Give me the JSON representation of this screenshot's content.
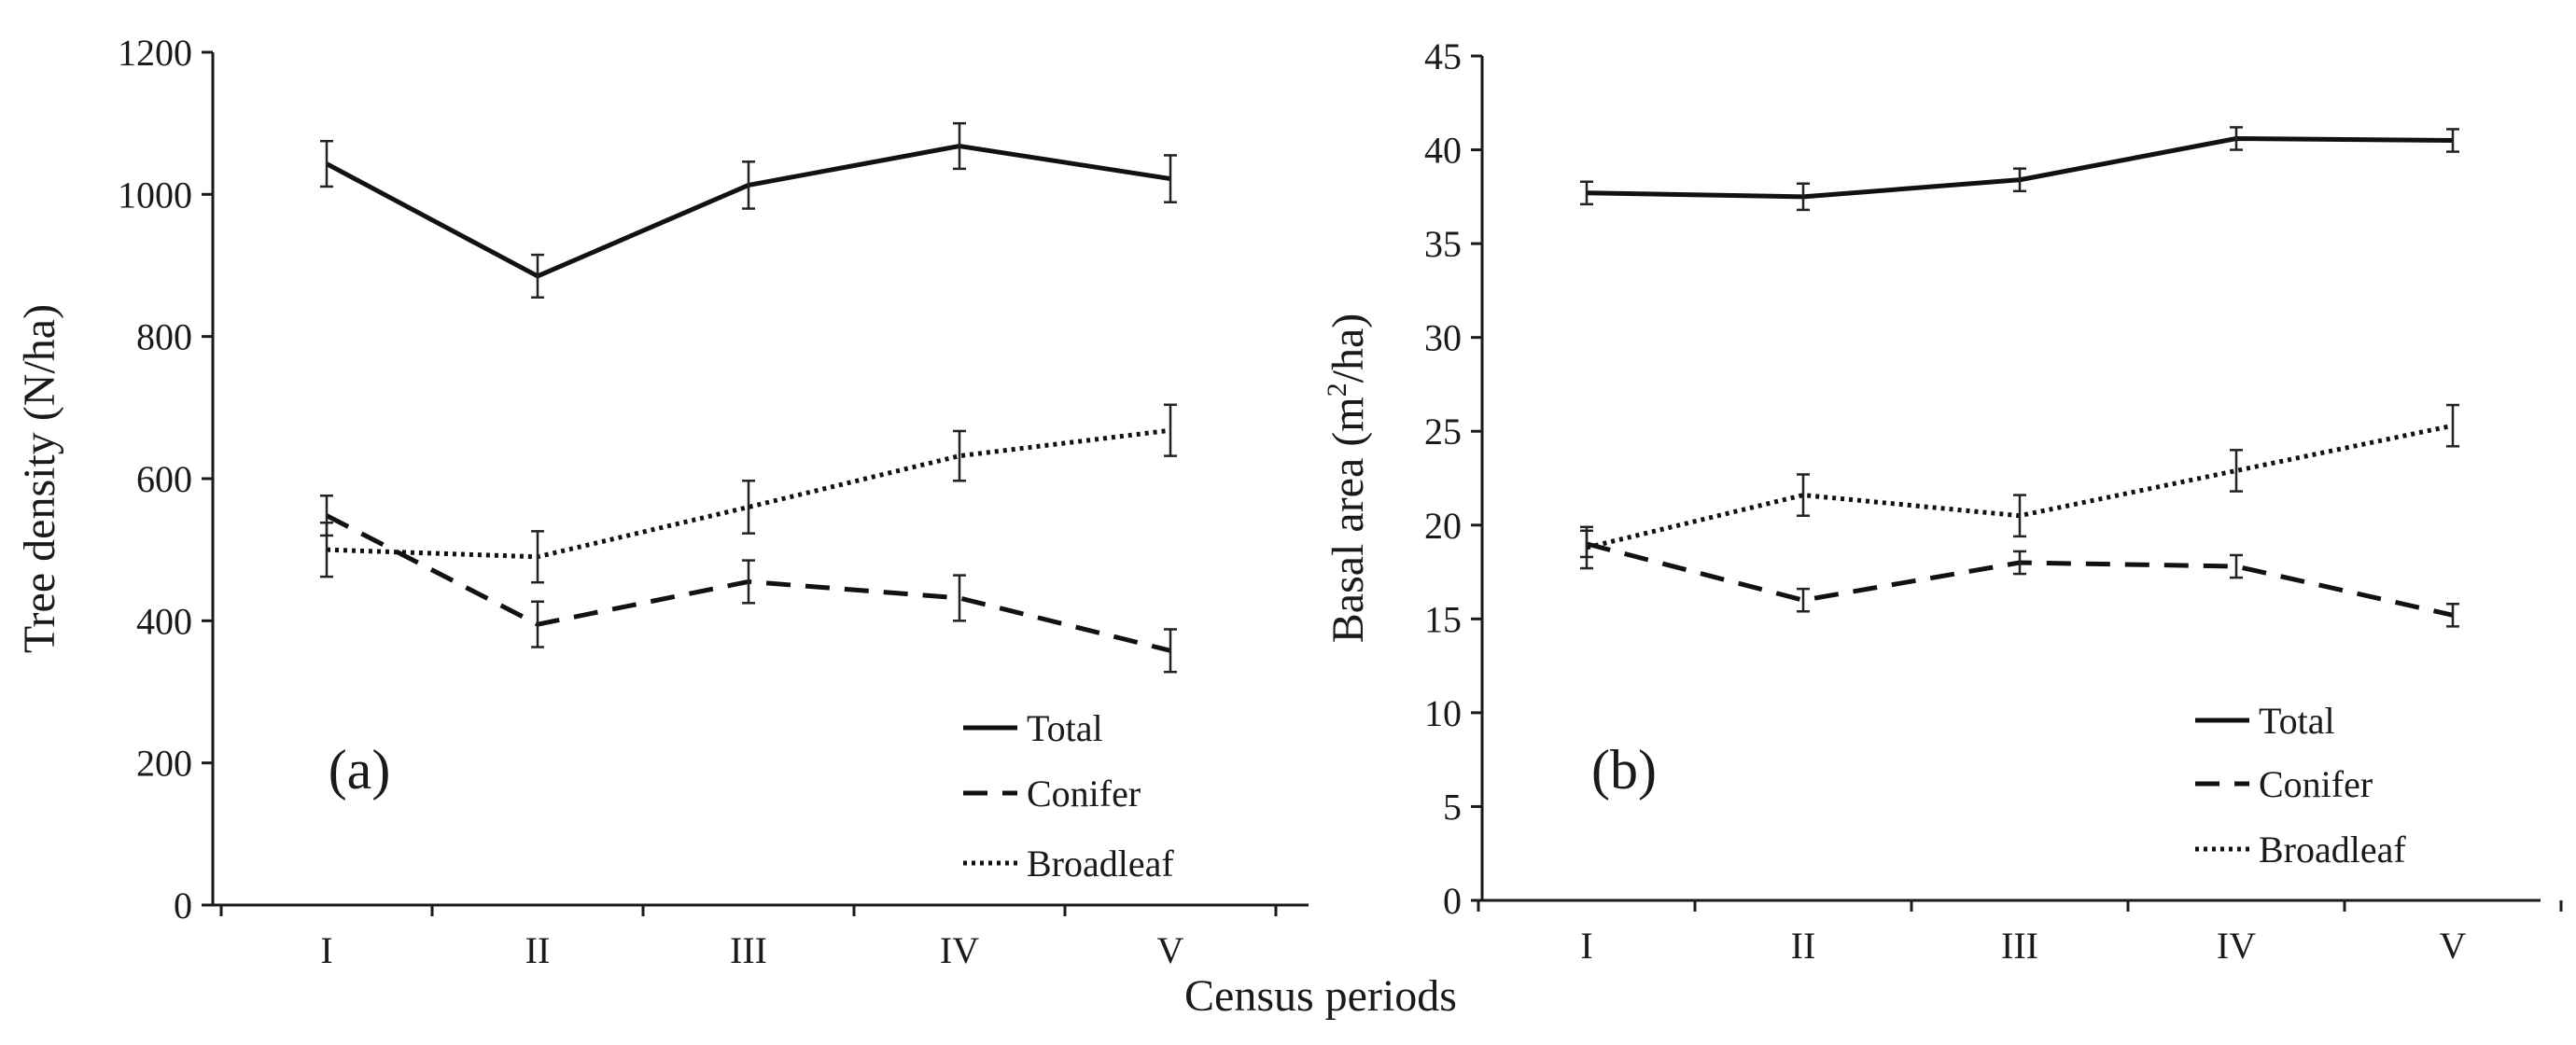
{
  "figure": {
    "xlabel": "Census periods"
  },
  "chart_data": [
    {
      "type": "line",
      "panel_label": "(a)",
      "title": "",
      "xlabel": "Census periods",
      "ylabel": "Tree density (N/ha)",
      "categories": [
        "I",
        "II",
        "III",
        "IV",
        "V"
      ],
      "ylim": [
        0,
        1200
      ],
      "yticks": [
        0,
        200,
        400,
        600,
        800,
        1000,
        1200
      ],
      "legend_position": "bottom-right",
      "series": [
        {
          "name": "Total",
          "style": "solid",
          "values": [
            1043,
            885,
            1013,
            1068,
            1022
          ],
          "errors": [
            32,
            30,
            33,
            32,
            33
          ]
        },
        {
          "name": "Conifer",
          "style": "dashed",
          "values": [
            548,
            395,
            455,
            432,
            358
          ],
          "errors": [
            28,
            32,
            30,
            32,
            30
          ]
        },
        {
          "name": "Broadleaf",
          "style": "dotted",
          "values": [
            500,
            490,
            560,
            632,
            668
          ],
          "errors": [
            38,
            36,
            37,
            35,
            36
          ]
        }
      ]
    },
    {
      "type": "line",
      "panel_label": "(b)",
      "title": "",
      "xlabel": "Census periods",
      "ylabel": "Basal area (m²/ha)",
      "ylabel_main": "Basal area (m",
      "ylabel_sup": "2",
      "ylabel_tail": "/ha)",
      "categories": [
        "I",
        "II",
        "III",
        "IV",
        "V"
      ],
      "ylim": [
        0,
        45
      ],
      "yticks": [
        0,
        5,
        10,
        15,
        20,
        25,
        30,
        35,
        40,
        45
      ],
      "legend_position": "bottom-right",
      "series": [
        {
          "name": "Total",
          "style": "solid",
          "values": [
            37.7,
            37.5,
            38.4,
            40.6,
            40.5
          ],
          "errors": [
            0.6,
            0.7,
            0.6,
            0.6,
            0.6
          ]
        },
        {
          "name": "Conifer",
          "style": "dashed",
          "values": [
            19.0,
            16.0,
            18.0,
            17.8,
            15.2
          ],
          "errors": [
            0.7,
            0.6,
            0.6,
            0.6,
            0.6
          ]
        },
        {
          "name": "Broadleaf",
          "style": "dotted",
          "values": [
            18.8,
            21.6,
            20.5,
            22.9,
            25.3
          ],
          "errors": [
            1.1,
            1.1,
            1.1,
            1.1,
            1.1
          ]
        }
      ]
    }
  ]
}
